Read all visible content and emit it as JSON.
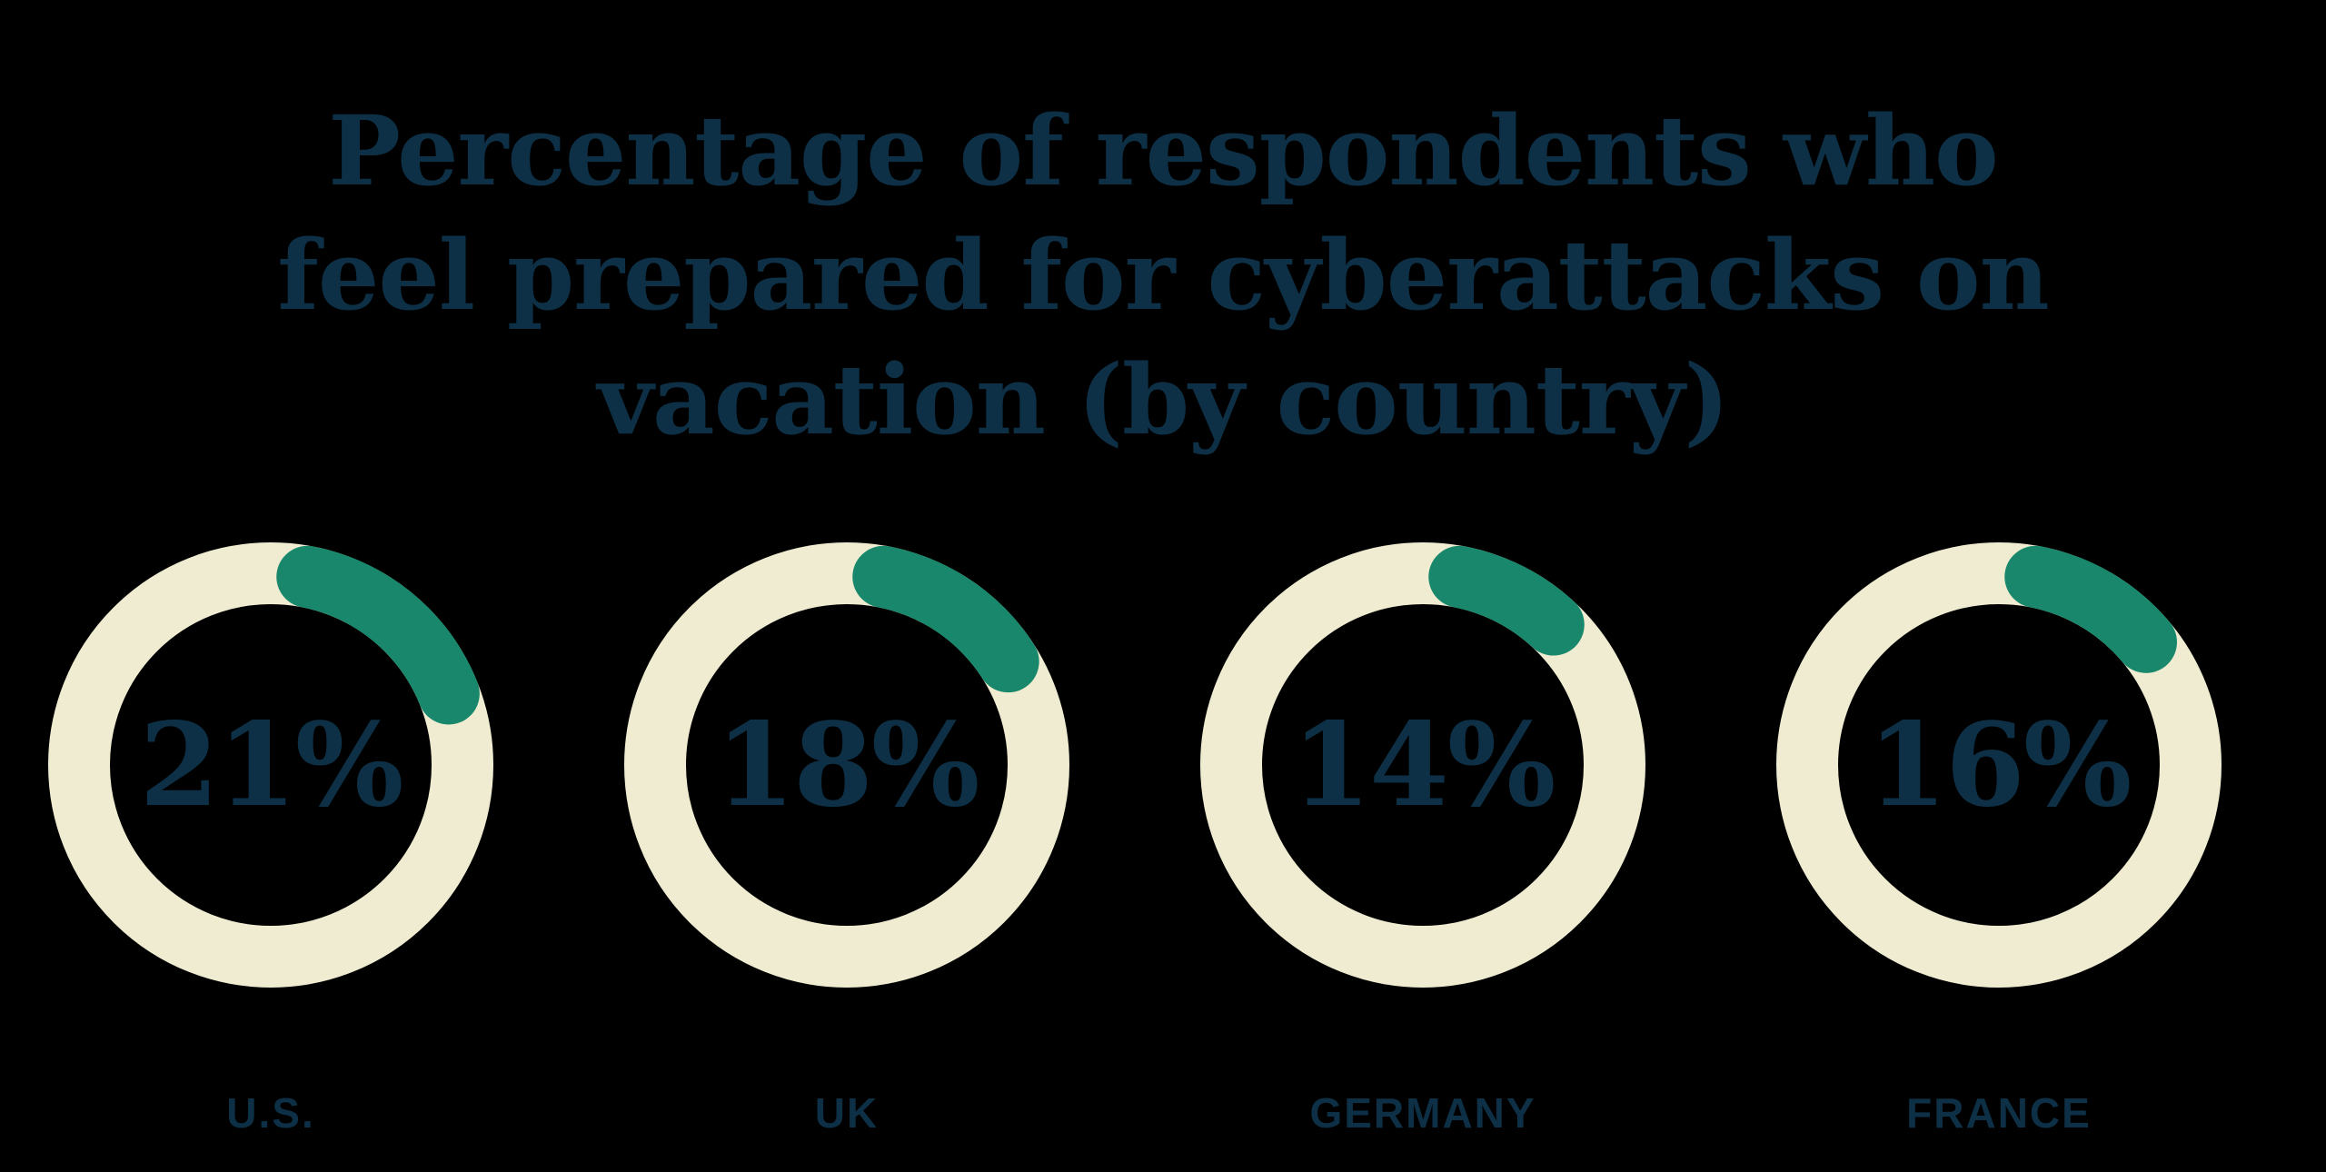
{
  "background_color": "#000000",
  "title": {
    "lines": [
      "Percentage of respondents who",
      "feel prepared for cyberattacks on",
      "vacation (by country)"
    ]
  },
  "chart_data": {
    "type": "pie",
    "subtype": "donut-small-multiples",
    "title": "Percentage of respondents who feel prepared for cyberattacks on vacation (by country)",
    "categories": [
      "U.S.",
      "UK",
      "GERMANY",
      "FRANCE"
    ],
    "values": [
      21,
      18,
      14,
      16
    ],
    "value_labels": [
      "21%",
      "18%",
      "14%",
      "16%"
    ],
    "unit": "%",
    "arc_start": "top (slightly clockwise of 12 o'clock), sweep clockwise",
    "arc_cap_style": "rounded",
    "legend": "none",
    "grid": false,
    "colors": {
      "ring_track": "#f0ecd1",
      "arc_fill": "#18876b",
      "text": "#0d3046",
      "background": "#000000"
    }
  }
}
